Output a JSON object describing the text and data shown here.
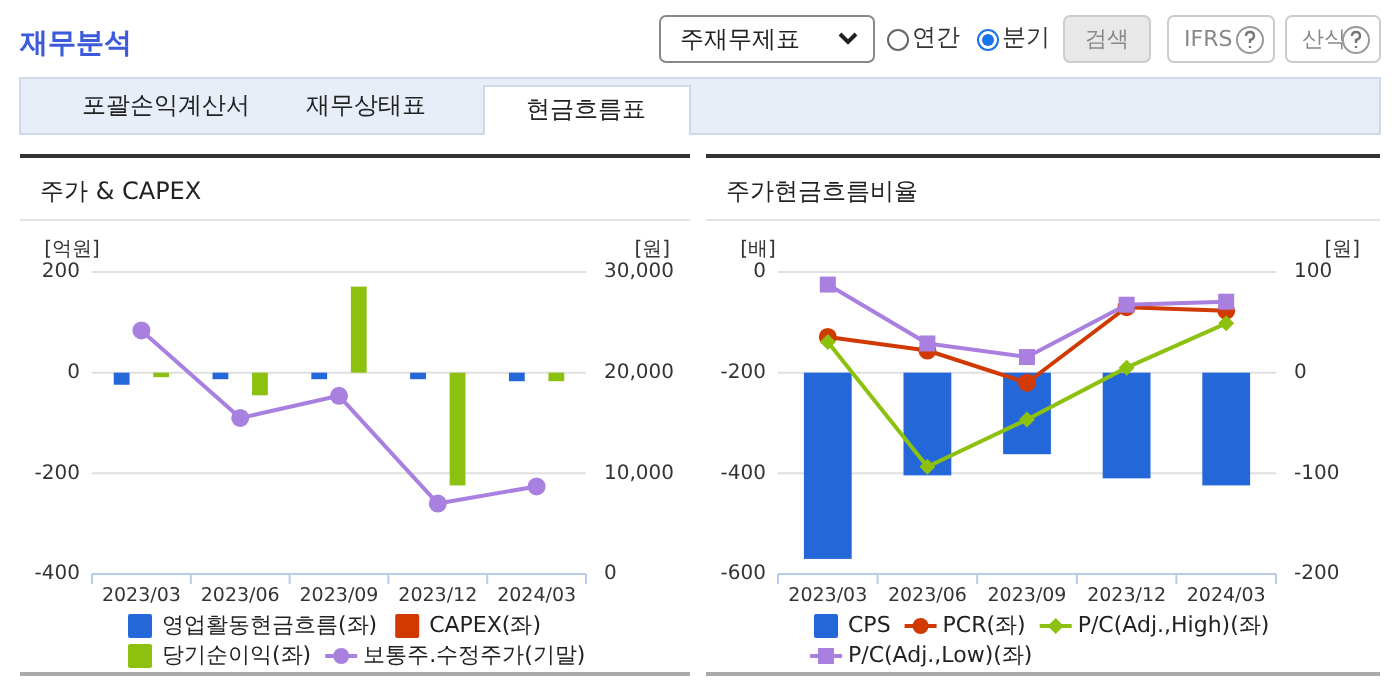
{
  "chart_data": [
    {
      "type": "bar",
      "title": "주가 & CAPEX",
      "ylabel": "[억원]",
      "y2label": "[원]",
      "categories": [
        "2023/03",
        "2023/06",
        "2023/09",
        "2023/12",
        "2024/03"
      ],
      "ylim": [
        -400,
        200
      ],
      "yticks": [
        -400,
        -200,
        0,
        200
      ],
      "y2lim": [
        0,
        30000
      ],
      "y2ticks": [
        0,
        {
          "value": 10000,
          "label": "10,000"
        },
        {
          "value": 20000,
          "label": "20,000"
        },
        {
          "value": 30000,
          "label": "30,000"
        }
      ],
      "grid": "y",
      "legend": "bottom",
      "annotations": [
        "재무분석",
        "주재무제표",
        "연간",
        "분기",
        "검색",
        "IFRS",
        "산식",
        "포괄손익계산서",
        "재무상태표",
        "현금흐름표"
      ],
      "series": [
        {
          "name": "영업활동현금흐름(좌)",
          "color": "#2467d9",
          "values": [
            -24,
            -13,
            -13,
            -13,
            -17
          ]
        },
        {
          "name": "CAPEX(좌)",
          "color": "#d03a00",
          "values": [
            0,
            0,
            0,
            0,
            0
          ]
        },
        {
          "name": "당기순이익(좌)",
          "color": "#8cc10f",
          "values": [
            -9,
            -45,
            171,
            -224,
            -17
          ]
        },
        {
          "name": "보통주.수정주가(기말)",
          "type": "line",
          "axis": "y2",
          "marker": "circle",
          "color": "#a880e0",
          "values": [
            24200,
            15500,
            17700,
            7000,
            8700
          ]
        }
      ]
    },
    {
      "type": "bar",
      "title": "주가현금흐름비율",
      "ylabel": "[배]",
      "y2label": "[원]",
      "categories": [
        "2023/03",
        "2023/06",
        "2023/09",
        "2023/12",
        "2024/03"
      ],
      "ylim": [
        -600,
        0
      ],
      "yticks": [
        -600,
        -400,
        -200,
        0
      ],
      "y2lim": [
        -200,
        100
      ],
      "y2ticks": [
        -200,
        -100,
        0,
        100
      ],
      "grid": "y",
      "legend": "bottom",
      "series": [
        {
          "name": "CPS",
          "axis": "y2",
          "color": "#2467d9",
          "values": [
            -185,
            -102,
            -81,
            -105,
            -112
          ]
        },
        {
          "name": "PCR(좌)",
          "type": "line",
          "marker": "circle",
          "color": "#d03a00",
          "values": [
            -129,
            -156,
            -220,
            -70,
            -77
          ]
        },
        {
          "name": "P/C(Adj.,High)(좌)",
          "type": "line",
          "marker": "diamond",
          "color": "#8cc10f",
          "values": [
            -139,
            -387,
            -293,
            -190,
            -102
          ]
        },
        {
          "name": "P/C(Adj.,Low)(좌)",
          "type": "line",
          "marker": "square",
          "color": "#a97fe0",
          "values": [
            -25,
            -142,
            -169,
            -65,
            -59
          ]
        }
      ]
    }
  ]
}
